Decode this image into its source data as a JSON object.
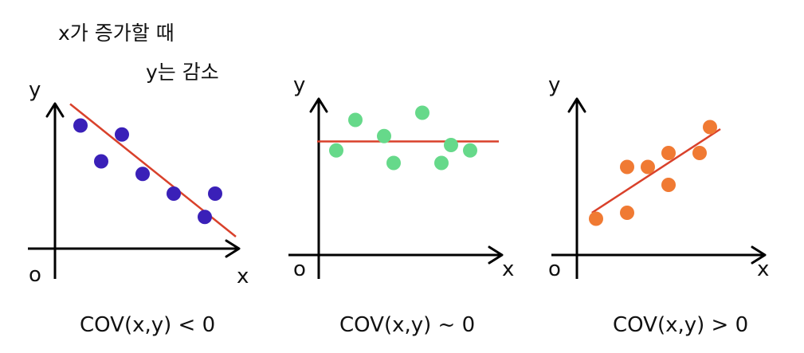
{
  "annotations": {
    "x_increase": "x가 증가할 때",
    "y_decrease": "y는 감소"
  },
  "colors": {
    "axis": "#000000",
    "trend": "#d9412b",
    "negative": "#3a20b8",
    "zero": "#66d98a",
    "positive": "#f07a33"
  },
  "panels": [
    {
      "id": "negative",
      "ylabel": "y",
      "xlabel": "x",
      "origin": "o",
      "caption": "COV(x,y) < 0",
      "points": [
        [
          1,
          7
        ],
        [
          2,
          5
        ],
        [
          3,
          6.5
        ],
        [
          4,
          4.3
        ],
        [
          5.5,
          3.2
        ],
        [
          7,
          1.9
        ],
        [
          7.5,
          3.2
        ]
      ],
      "trend": [
        [
          0.5,
          8.2
        ],
        [
          8.5,
          0.8
        ]
      ]
    },
    {
      "id": "zero",
      "ylabel": "y",
      "xlabel": "x",
      "origin": "o",
      "caption": "COV(x,y) ~ 0",
      "points": [
        [
          1,
          4.5
        ],
        [
          2,
          6.2
        ],
        [
          3.5,
          5.3
        ],
        [
          4,
          3.8
        ],
        [
          5.5,
          6.6
        ],
        [
          6.5,
          3.8
        ],
        [
          7,
          4.8
        ],
        [
          8,
          4.5
        ]
      ],
      "trend": [
        [
          0,
          5
        ],
        [
          9.5,
          5
        ]
      ]
    },
    {
      "id": "positive",
      "ylabel": "y",
      "xlabel": "x",
      "origin": "o",
      "caption": "COV(x,y) > 0",
      "points": [
        [
          1,
          1.5
        ],
        [
          2.5,
          1.8
        ],
        [
          2.5,
          4.1
        ],
        [
          3.5,
          4.1
        ],
        [
          4.5,
          4.8
        ],
        [
          4.5,
          3.2
        ],
        [
          6,
          4.8
        ],
        [
          6.5,
          6.1
        ]
      ],
      "trend": [
        [
          0.8,
          1.8
        ],
        [
          7,
          6
        ]
      ]
    }
  ]
}
